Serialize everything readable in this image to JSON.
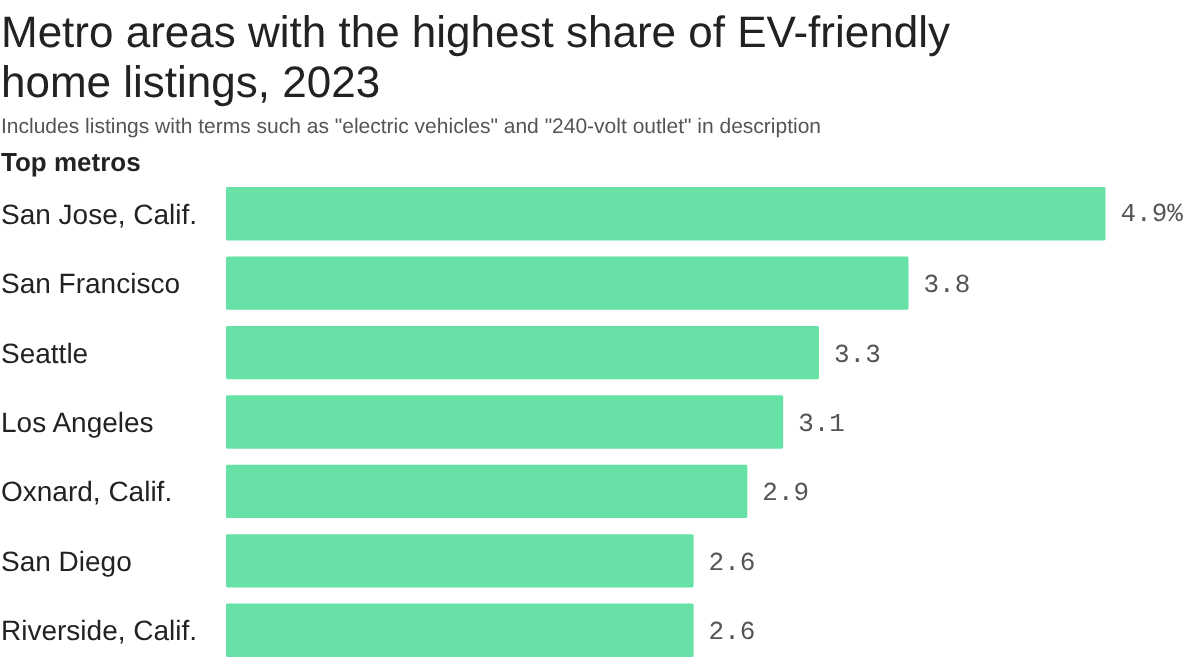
{
  "chart_data": {
    "type": "bar",
    "orientation": "horizontal",
    "title": "Metro areas with the highest share of EV-friendly\nhome listings, 2023",
    "subtitle": "Includes listings with terms such as \"electric vehicles\" and \"240-volt outlet\" in description",
    "ylabel": "Top metros",
    "categories": [
      "San Jose, Calif.",
      "San Francisco",
      "Seattle",
      "Los Angeles",
      "Oxnard, Calif.",
      "San Diego",
      "Riverside, Calif."
    ],
    "values": [
      4.9,
      3.8,
      3.3,
      3.1,
      2.9,
      2.6,
      2.6
    ],
    "value_labels": [
      "4.9%",
      "3.8",
      "3.3",
      "3.1",
      "2.9",
      "2.6",
      "2.6"
    ],
    "color": "#68e1a6",
    "grid": false
  }
}
